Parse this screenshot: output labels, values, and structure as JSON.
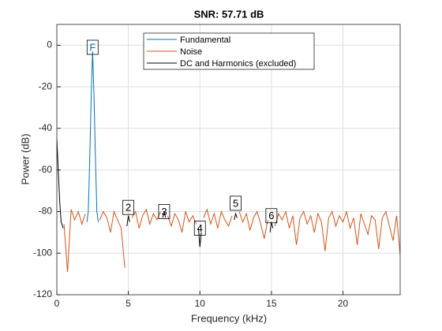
{
  "chart_data": {
    "type": "line",
    "title": "SNR:  57.71 dB",
    "xlabel": "Frequency (kHz)",
    "ylabel": "Power (dB)",
    "xlim": [
      0,
      24
    ],
    "ylim": [
      -120,
      10
    ],
    "xticks": [
      0,
      5,
      10,
      15,
      20
    ],
    "yticks": [
      -120,
      -100,
      -80,
      -60,
      -40,
      -20,
      0
    ],
    "grid": true,
    "legend": "north",
    "series": [
      {
        "name": "Fundamental",
        "color": "#0072bd",
        "x": [
          2.1,
          2.2,
          2.3,
          2.4,
          2.5,
          2.6,
          2.7,
          2.8,
          2.9
        ],
        "values": [
          -85,
          -80,
          -55,
          -25,
          -3,
          -25,
          -55,
          -80,
          -85
        ]
      },
      {
        "name": "Noise",
        "color": "#d95319",
        "x": [
          0.5,
          0.75,
          1,
          1.25,
          1.5,
          1.75,
          2,
          2.25,
          2.5,
          2.75,
          3,
          3.25,
          3.5,
          3.75,
          4,
          4.25,
          4.5,
          4.75,
          5,
          5.25,
          5.5,
          5.75,
          6,
          6.25,
          6.5,
          6.75,
          7,
          7.25,
          7.5,
          7.75,
          8,
          8.25,
          8.5,
          8.75,
          9,
          9.25,
          9.5,
          9.75,
          10,
          10.25,
          10.5,
          10.75,
          11,
          11.25,
          11.5,
          11.75,
          12,
          12.25,
          12.5,
          12.75,
          13,
          13.25,
          13.5,
          13.75,
          14,
          14.25,
          14.5,
          14.75,
          15,
          15.25,
          15.5,
          15.75,
          16,
          16.25,
          16.5,
          16.75,
          17,
          17.25,
          17.5,
          17.75,
          18,
          18.25,
          18.5,
          18.75,
          19,
          19.25,
          19.5,
          19.75,
          20,
          20.25,
          20.5,
          20.75,
          21,
          21.25,
          21.5,
          21.75,
          22,
          22.25,
          22.5,
          22.75,
          23,
          23.25,
          23.5,
          23.75,
          24
        ],
        "values": [
          -86,
          -109,
          -79,
          -84,
          -80,
          -86,
          -81,
          null,
          null,
          null,
          -84,
          -80,
          -83,
          -90,
          -80,
          -84,
          -88,
          -107,
          null,
          -83,
          -80,
          -88,
          -82,
          -79,
          -86,
          -81,
          -84,
          -80,
          null,
          -82,
          -87,
          -81,
          -84,
          -90,
          -80,
          -85,
          -82,
          -86,
          null,
          -83,
          -79,
          -86,
          -81,
          -88,
          -80,
          -84,
          -87,
          -82,
          null,
          -80,
          -85,
          -81,
          -89,
          -83,
          -80,
          -86,
          -93,
          -84,
          null,
          -87,
          -81,
          -84,
          -80,
          -88,
          -82,
          -96,
          -83,
          -80,
          -86,
          -82,
          -90,
          -81,
          -85,
          -99,
          -83,
          -80,
          -87,
          -82,
          -85,
          -80,
          -88,
          -83,
          -96,
          -81,
          -86,
          -91,
          -82,
          -84,
          -98,
          -83,
          -80,
          -87,
          -94,
          -82,
          -101
        ]
      },
      {
        "name": "DC and Harmonics (excluded)",
        "color": "#000000",
        "x": [
          0,
          0.1,
          0.2,
          0.3,
          0.45,
          0.6,
          4.9,
          5.0,
          5.1,
          5.2,
          7.4,
          7.5,
          7.6,
          7.7,
          9.9,
          10.0,
          10.1,
          10.2,
          12.4,
          12.5,
          12.6,
          12.7,
          14.9,
          15.0,
          15.1
        ],
        "values": [
          -45,
          -60,
          -75,
          -85,
          -88,
          null,
          -87,
          -82,
          -85,
          null,
          -83,
          -80,
          -83,
          null,
          -88,
          -97,
          -90,
          null,
          -84,
          -81,
          -83,
          null,
          -90,
          -85,
          -88
        ]
      }
    ],
    "annotations": [
      {
        "text": "F",
        "x": 2.5,
        "y": -1,
        "color": "#0072bd"
      },
      {
        "text": "2",
        "x": 5,
        "y": -78,
        "color": "#000000"
      },
      {
        "text": "3",
        "x": 7.5,
        "y": -80,
        "color": "#000000"
      },
      {
        "text": "4",
        "x": 10,
        "y": -88,
        "color": "#000000"
      },
      {
        "text": "5",
        "x": 12.5,
        "y": -76,
        "color": "#000000"
      },
      {
        "text": "6",
        "x": 15,
        "y": -82,
        "color": "#000000"
      }
    ]
  }
}
